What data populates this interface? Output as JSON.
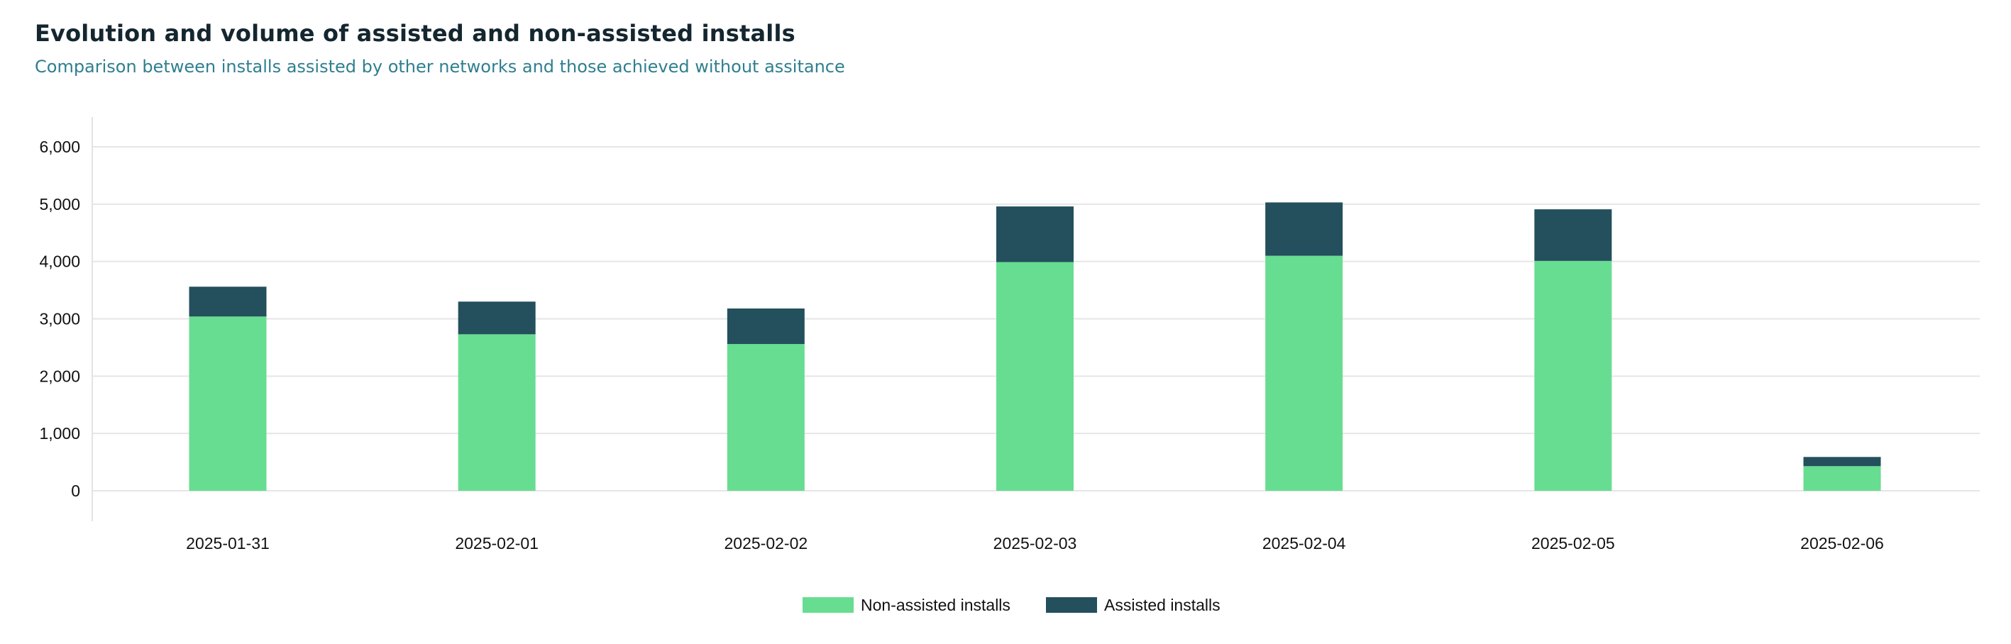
{
  "header": {
    "title": "Evolution and volume of assisted and non-assisted installs",
    "subtitle": "Comparison between installs assisted by other networks and those achieved without assitance"
  },
  "chart_data": {
    "type": "bar",
    "stacked": true,
    "categories": [
      "2025-01-31",
      "2025-02-01",
      "2025-02-02",
      "2025-02-03",
      "2025-02-04",
      "2025-02-05",
      "2025-02-06"
    ],
    "series": [
      {
        "name": "Non-assisted installs",
        "color": "#67dd91",
        "values": [
          3040,
          2730,
          2560,
          3990,
          4100,
          4010,
          430
        ]
      },
      {
        "name": "Assisted installs",
        "color": "#244f5d",
        "values": [
          520,
          570,
          620,
          970,
          930,
          900,
          160
        ]
      }
    ],
    "ylim": [
      0,
      6000
    ],
    "yticks": [
      0,
      1000,
      2000,
      3000,
      4000,
      5000,
      6000
    ],
    "ytick_labels": [
      "0",
      "1,000",
      "2,000",
      "3,000",
      "4,000",
      "5,000",
      "6,000"
    ],
    "grid": true,
    "legend_position": "bottom-center",
    "xlabel": "",
    "ylabel": ""
  }
}
